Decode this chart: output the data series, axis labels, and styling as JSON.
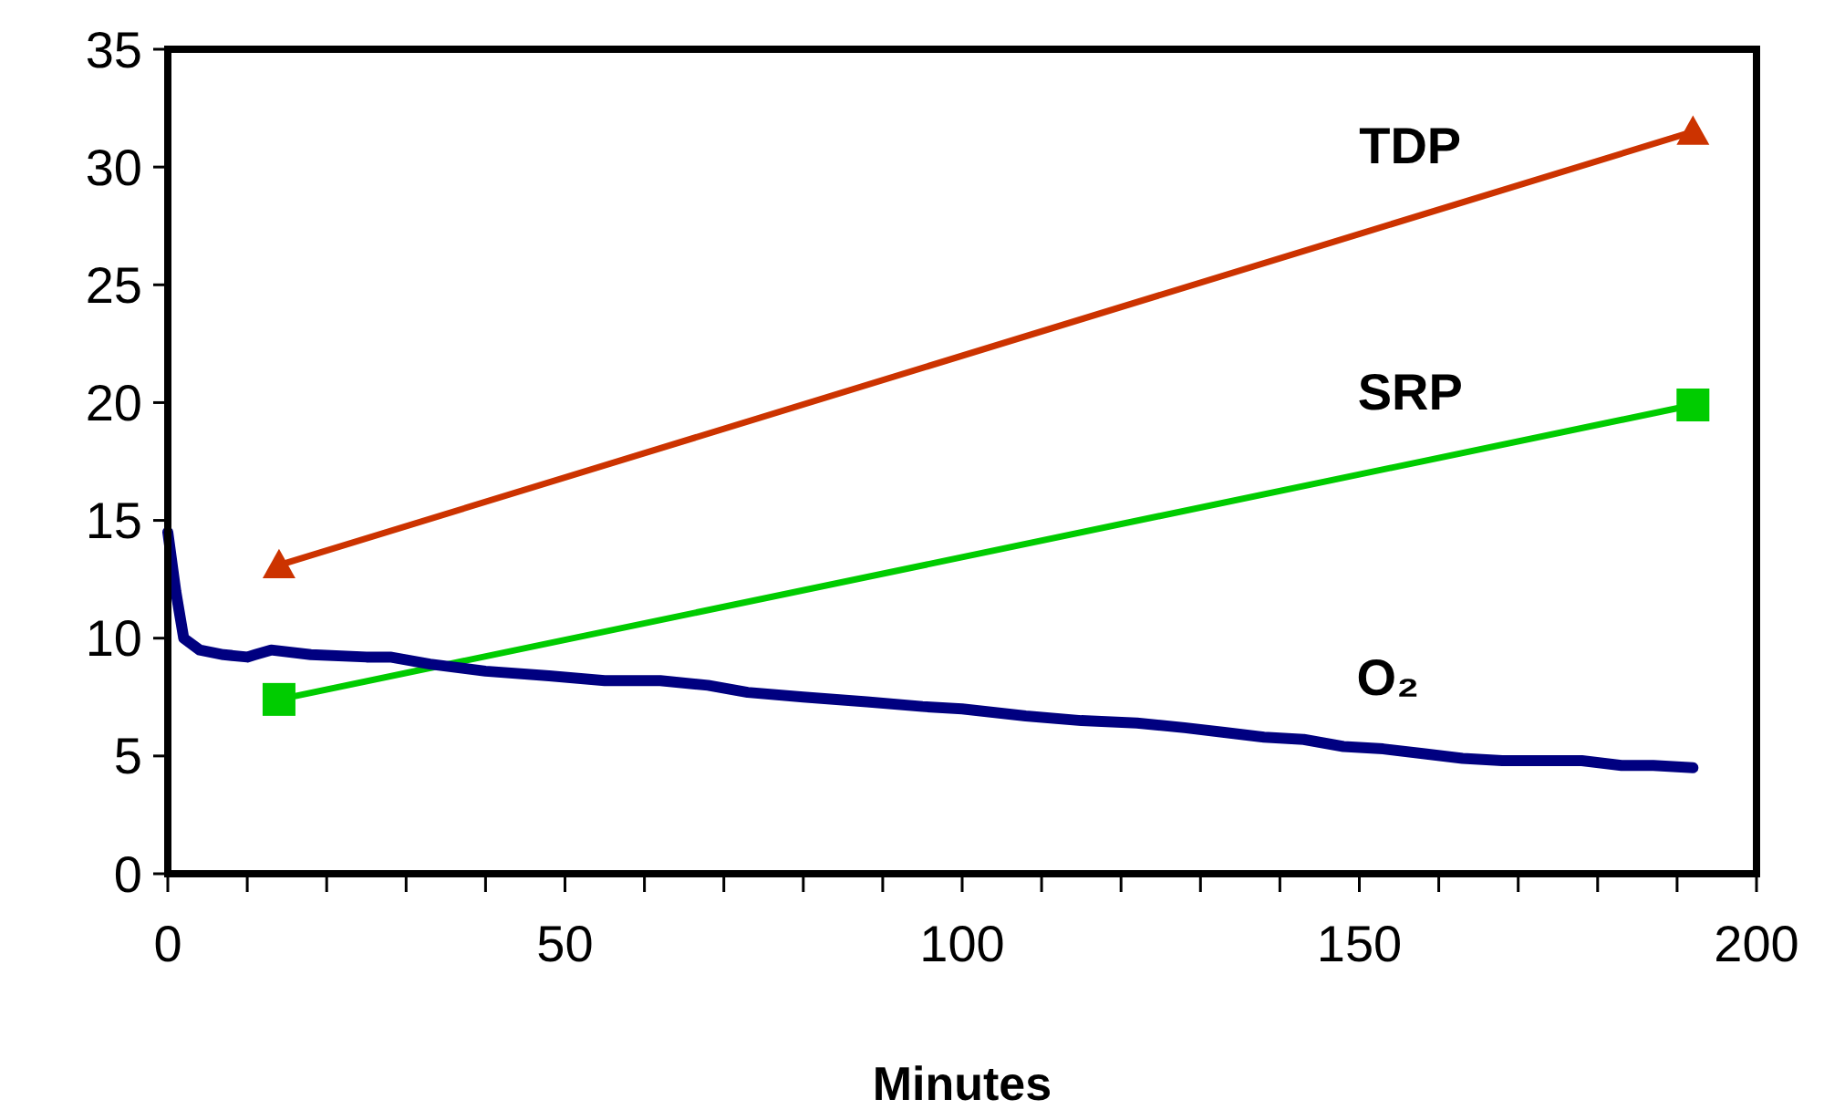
{
  "chart_data": {
    "type": "line",
    "xlabel": "Minutes",
    "xlim": [
      0,
      200
    ],
    "ylim": [
      0,
      35
    ],
    "xticks": [
      0,
      {
        "value": 10,
        "label": null
      },
      {
        "value": 20,
        "label": null
      },
      {
        "value": 30,
        "label": null
      },
      {
        "value": 40,
        "label": null
      },
      50,
      {
        "value": 60,
        "label": null
      },
      {
        "value": 70,
        "label": null
      },
      {
        "value": 80,
        "label": null
      },
      {
        "value": 90,
        "label": null
      },
      100,
      {
        "value": 110,
        "label": null
      },
      {
        "value": 120,
        "label": null
      },
      {
        "value": 130,
        "label": null
      },
      {
        "value": 140,
        "label": null
      },
      150,
      {
        "value": 160,
        "label": null
      },
      {
        "value": 170,
        "label": null
      },
      {
        "value": 180,
        "label": null
      },
      {
        "value": 190,
        "label": null
      },
      200
    ],
    "yticks": [
      0,
      5,
      10,
      15,
      20,
      25,
      30,
      35
    ],
    "grid": false,
    "series": [
      {
        "name": "TDP",
        "color": "#cc3300",
        "marker": "triangle",
        "x": [
          14,
          192
        ],
        "values": [
          13.1,
          31.5
        ]
      },
      {
        "name": "SRP",
        "color": "#00cc00",
        "marker": "square",
        "x": [
          14,
          192
        ],
        "values": [
          7.4,
          19.9
        ]
      },
      {
        "name": "O₂",
        "color": "#000080",
        "marker": "none",
        "x": [
          0,
          1,
          2,
          4,
          7,
          10,
          11,
          13,
          18,
          25,
          28,
          33,
          40,
          48,
          55,
          62,
          68,
          73,
          80,
          88,
          95,
          100,
          108,
          115,
          122,
          128,
          133,
          138,
          143,
          148,
          153,
          158,
          163,
          168,
          173,
          178,
          183,
          187,
          192
        ],
        "values": [
          14.5,
          12,
          10,
          9.5,
          9.3,
          9.2,
          9.3,
          9.5,
          9.3,
          9.2,
          9.2,
          8.9,
          8.6,
          8.4,
          8.2,
          8.2,
          8.0,
          7.7,
          7.5,
          7.3,
          7.1,
          7.0,
          6.7,
          6.5,
          6.4,
          6.2,
          6.0,
          5.8,
          5.7,
          5.4,
          5.3,
          5.1,
          4.9,
          4.8,
          4.8,
          4.8,
          4.6,
          4.6,
          4.5
        ]
      }
    ]
  }
}
